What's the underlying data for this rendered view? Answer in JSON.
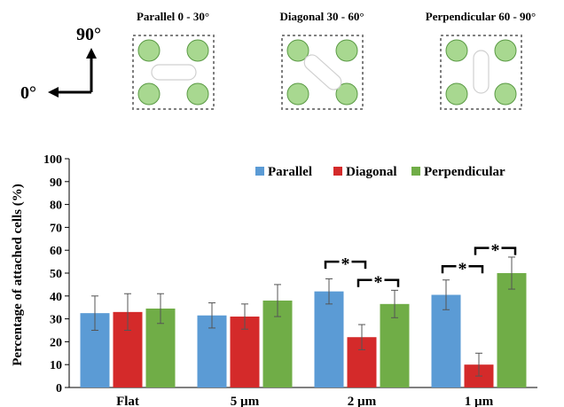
{
  "diagram": {
    "axis_labels": {
      "zero": "0°",
      "ninety": "90°"
    },
    "panels": [
      {
        "title": "Parallel 0 - 30°",
        "orientation": "parallel"
      },
      {
        "title": "Diagonal 30 - 60°",
        "orientation": "diagonal"
      },
      {
        "title": "Perpendicular 60 - 90°",
        "orientation": "perpendicular"
      }
    ],
    "colors": {
      "pillar_fill": "#a8d890",
      "pillar_stroke": "#5a9a44",
      "border": "#808080",
      "cell_stroke": "#d0d0d0"
    }
  },
  "chart_data": {
    "type": "bar",
    "title": "",
    "xlabel": "",
    "ylabel": "Percentage of attached cells (%)",
    "ylim": [
      0,
      100
    ],
    "yticks": [
      0,
      10,
      20,
      30,
      40,
      50,
      60,
      70,
      80,
      90,
      100
    ],
    "grid": false,
    "legend_position": "top-right",
    "categories": [
      "Flat",
      "5 µm",
      "2 µm",
      "1 µm"
    ],
    "series": [
      {
        "name": "Parallel",
        "color": "#5b9bd5",
        "values": [
          32.5,
          31.5,
          42,
          40.5
        ],
        "errors": [
          7.5,
          5.5,
          5.5,
          6.5
        ]
      },
      {
        "name": "Diagonal",
        "color": "#d42a2a",
        "values": [
          33,
          31,
          22,
          10
        ],
        "errors": [
          8,
          5.5,
          5.5,
          5
        ]
      },
      {
        "name": "Perpendicular",
        "color": "#70ad47",
        "values": [
          34.5,
          38,
          36.5,
          50
        ],
        "errors": [
          6.5,
          7,
          6,
          7
        ]
      }
    ],
    "significance": [
      {
        "category": "2 µm",
        "from": 0,
        "to": 1,
        "label": "*",
        "y": 55
      },
      {
        "category": "2 µm",
        "from": 1,
        "to": 2,
        "label": "*",
        "y": 47
      },
      {
        "category": "1 µm",
        "from": 0,
        "to": 1,
        "label": "*",
        "y": 53
      },
      {
        "category": "1 µm",
        "from": 1,
        "to": 2,
        "label": "*",
        "y": 61
      }
    ]
  }
}
